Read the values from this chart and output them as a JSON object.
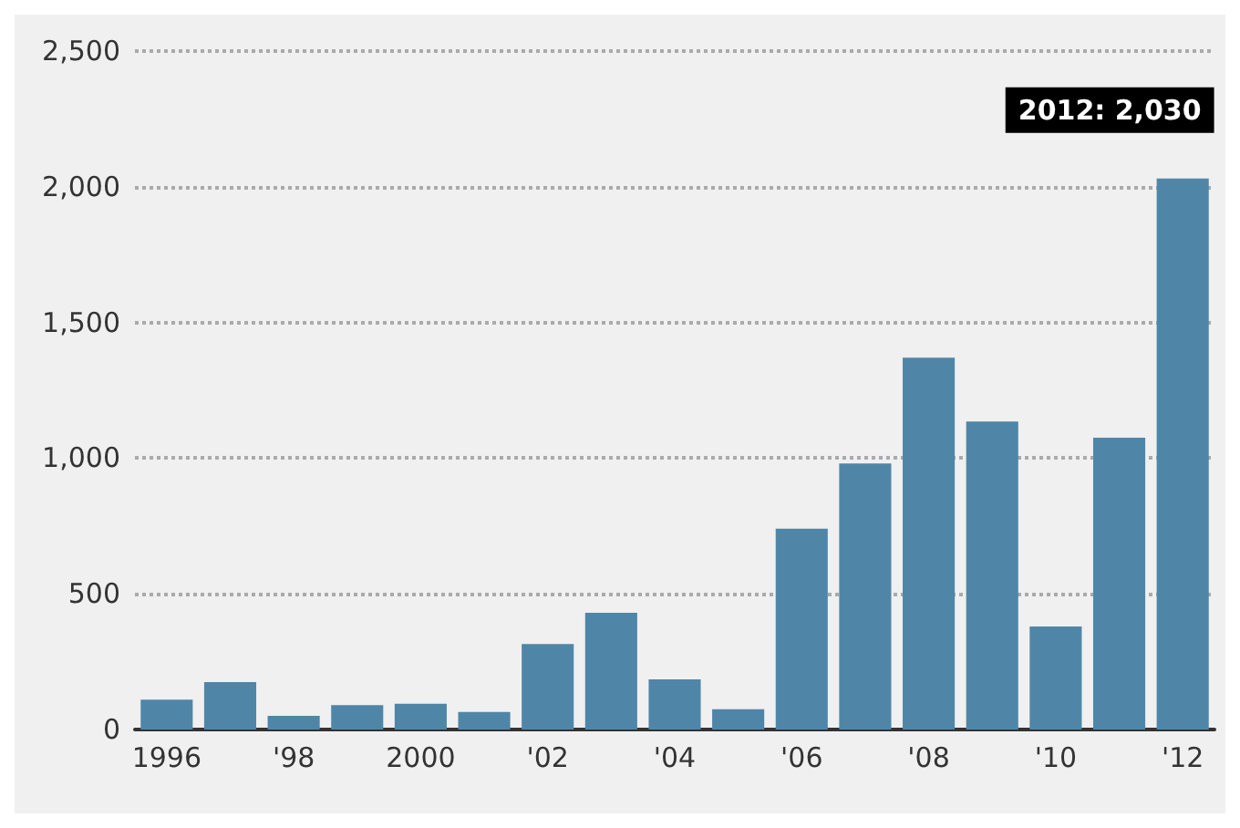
{
  "chart_data": {
    "type": "bar",
    "categories": [
      "1996",
      null,
      "'98",
      null,
      "2000",
      null,
      "'02",
      null,
      "'04",
      null,
      "'06",
      null,
      "'08",
      null,
      "'10",
      null,
      "'12"
    ],
    "values": [
      110,
      175,
      50,
      90,
      95,
      65,
      315,
      430,
      185,
      75,
      740,
      980,
      1370,
      1135,
      380,
      1075,
      2030
    ],
    "color": "#4f86a8",
    "ylim": [
      0,
      2500
    ],
    "yticks": [
      0,
      {
        "value": 500,
        "label": "500"
      },
      {
        "value": 1000,
        "label": "1,000"
      },
      {
        "value": 1500,
        "label": "1,500"
      },
      {
        "value": 2000,
        "label": "2,000"
      },
      {
        "value": 2500,
        "label": "2,500"
      }
    ],
    "grid": "y",
    "annotations": [
      {
        "text": "2012: 2,030",
        "x": "'12",
        "y": 2030
      }
    ]
  }
}
